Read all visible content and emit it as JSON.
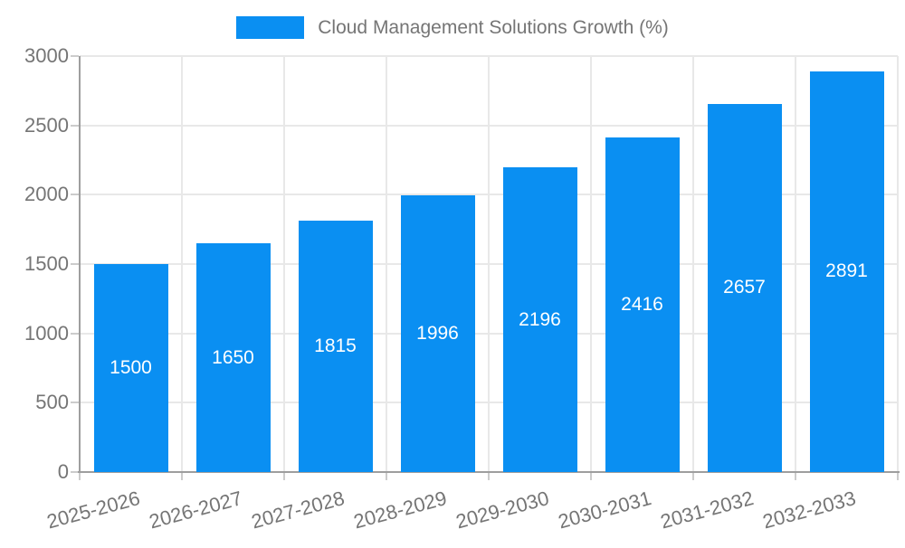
{
  "chart_data": {
    "type": "bar",
    "title": "Cloud Management Solutions Growth (%)",
    "legend_entries": [
      "Cloud Management Solutions Growth (%)"
    ],
    "legend_position": "top-center",
    "categories": [
      "2025-2026",
      "2026-2027",
      "2027-2028",
      "2028-2029",
      "2029-2030",
      "2030-2031",
      "2031-2032",
      "2032-2033"
    ],
    "series": [
      {
        "name": "Cloud Management Solutions Growth (%)",
        "values": [
          1500,
          1650,
          1815,
          1996,
          2196,
          2416,
          2657,
          2891
        ]
      }
    ],
    "value_label_placement": "inside-center",
    "xlabel": "",
    "ylabel": "",
    "ylim": [
      0,
      3000
    ],
    "yticks": [
      0,
      500,
      1000,
      1500,
      2000,
      2500,
      3000
    ],
    "grid": true,
    "x_label_rotation_deg": -15,
    "colors": {
      "bar": "#0a8ff2",
      "value_label": "#ffffff",
      "axis_text": "#757575",
      "grid_line": "#e8e8e8",
      "axis_line": "#9e9e9e",
      "tick_line": "#cccccc",
      "background": "#ffffff"
    }
  }
}
